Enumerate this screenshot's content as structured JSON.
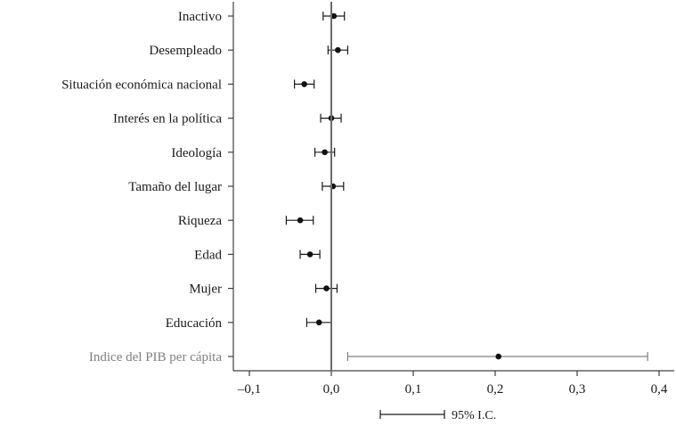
{
  "chart_data": {
    "type": "scatter",
    "subtype": "coefficient-plot",
    "categories": [
      "Inactivo",
      "Desempleado",
      "Situación económica nacional",
      "Interés en la política",
      "Ideología",
      "Tamaño del lugar",
      "Riqueza",
      "Edad",
      "Mujer",
      "Educación",
      "Indice del PIB per cápita"
    ],
    "estimates": [
      0.003,
      0.008,
      -0.033,
      0.0,
      -0.008,
      0.002,
      -0.038,
      -0.026,
      -0.006,
      -0.015,
      0.204
    ],
    "ci_low": [
      -0.01,
      -0.004,
      -0.045,
      -0.013,
      -0.02,
      -0.011,
      -0.055,
      -0.038,
      -0.019,
      -0.03,
      0.02
    ],
    "ci_high": [
      0.016,
      0.02,
      -0.021,
      0.012,
      0.004,
      0.015,
      -0.022,
      -0.014,
      0.007,
      0.0,
      0.386
    ],
    "highlight_category": "Indice del PIB per cápita",
    "xlim": [
      -0.12,
      0.415
    ],
    "xticks": [
      -0.1,
      0.0,
      0.1,
      0.2,
      0.3,
      0.4
    ],
    "xtick_labels": [
      "–0,1",
      "0,0",
      "0,1",
      "0,2",
      "0,3",
      "0,4"
    ],
    "reference_line": 0.0,
    "legend": {
      "label": "95% I.C.",
      "placement": "bottom"
    },
    "colors": {
      "main": "#1a1a1a",
      "highlight": "#808080",
      "axis": "#404040"
    },
    "grid": false,
    "title": "",
    "xlabel": "",
    "ylabel": ""
  }
}
